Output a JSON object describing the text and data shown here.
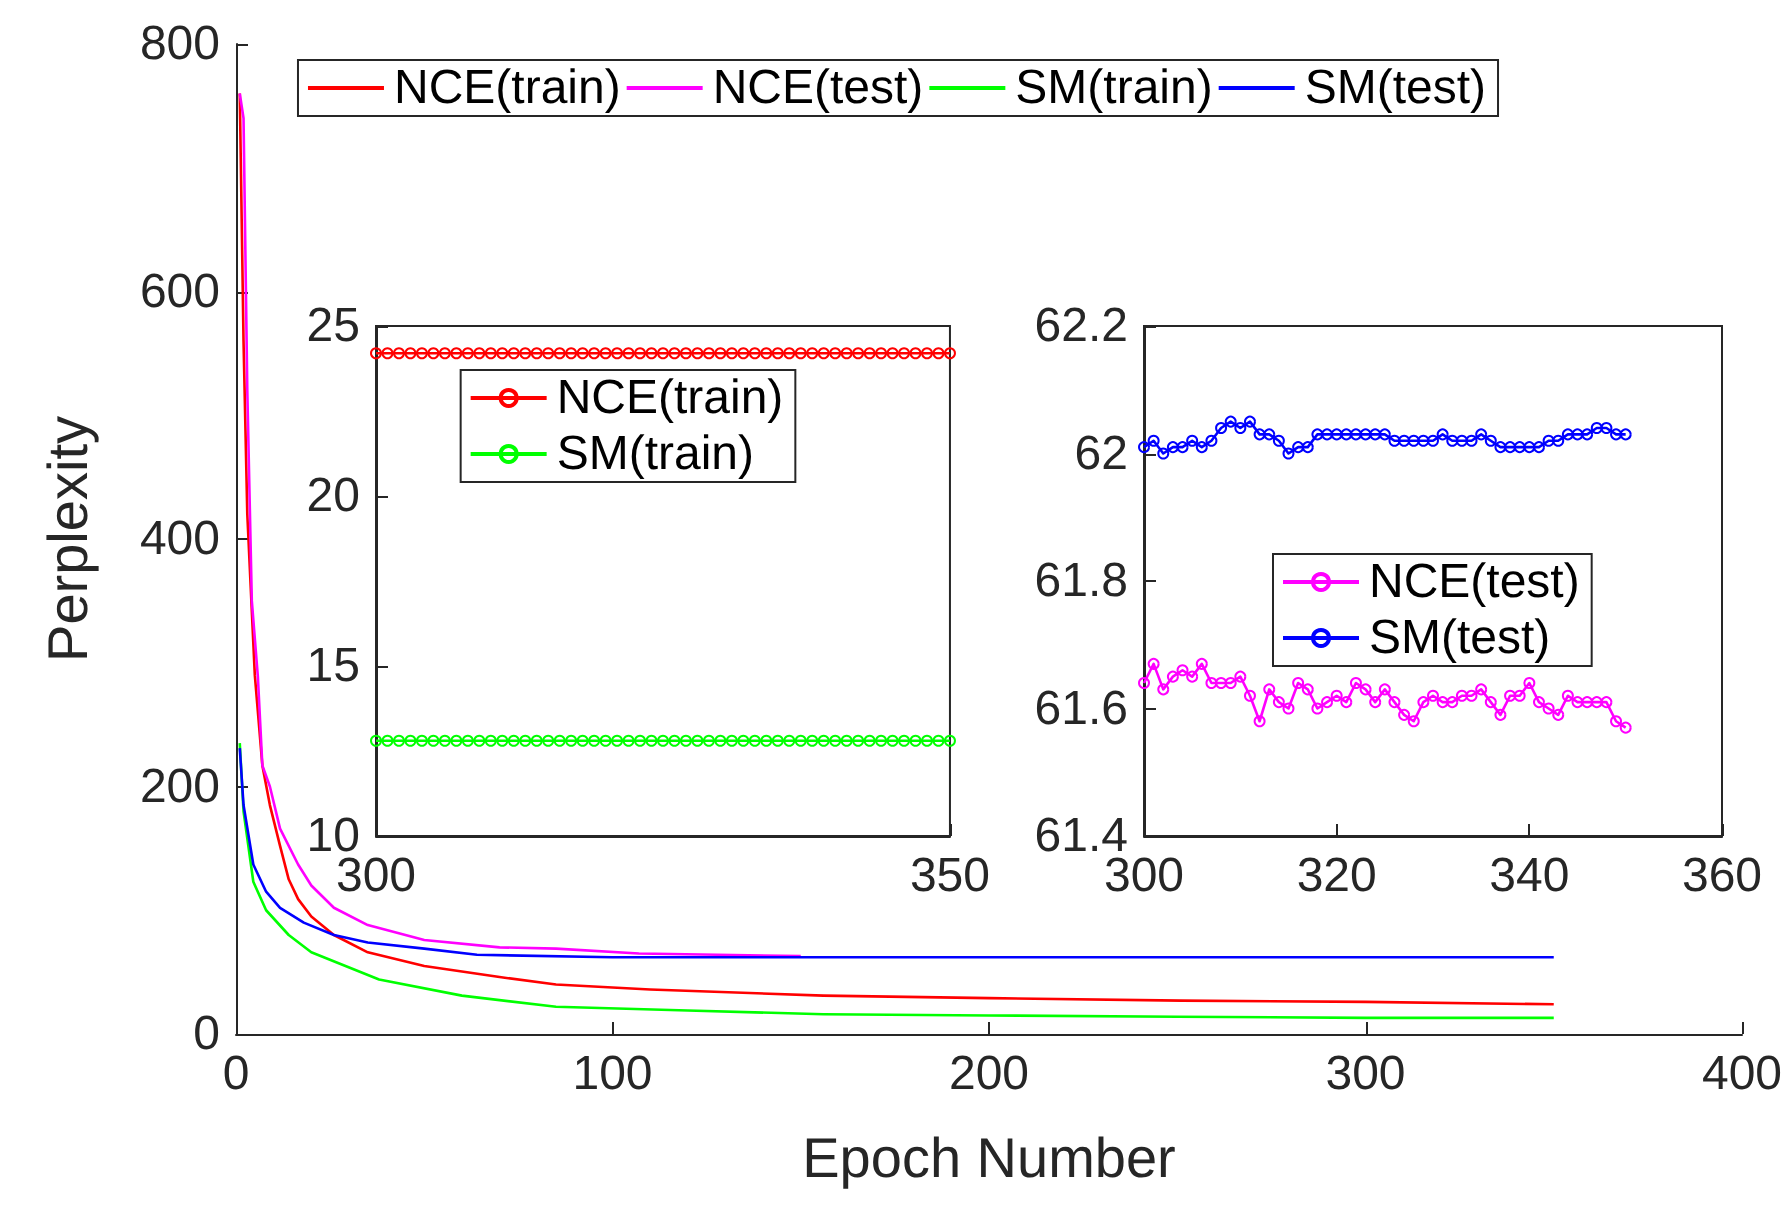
{
  "chart_data": [
    {
      "type": "line",
      "xlabel": "Epoch Number",
      "ylabel": "Perplexity",
      "xlim": [
        0,
        400
      ],
      "xticks": [
        0,
        100,
        200,
        300,
        400
      ],
      "ylim": [
        0,
        800
      ],
      "yticks": [
        0,
        200,
        400,
        600,
        800
      ],
      "legend": "top",
      "marker": "none",
      "series": [
        {
          "name": "NCE(train)",
          "color": "#ff0000",
          "x": [
            1,
            2,
            3,
            5,
            7,
            9,
            11.7,
            14,
            16.5,
            20,
            26,
            35,
            50,
            70,
            85,
            110,
            156,
            200,
            251,
            300,
            350
          ],
          "values": [
            760,
            560,
            420,
            290,
            217,
            185,
            152,
            125,
            109,
            95,
            80,
            66,
            55,
            46,
            40,
            36,
            31,
            29,
            27,
            26,
            24
          ]
        },
        {
          "name": "NCE(test)",
          "color": "#ff00ff",
          "x": [
            1,
            2,
            3,
            4.2,
            5.8,
            7,
            9,
            11.7,
            16.5,
            20,
            26,
            35,
            50,
            70,
            85,
            107,
            150
          ],
          "values": [
            760,
            740,
            520,
            350,
            289,
            217,
            200,
            166,
            137,
            120,
            102,
            88,
            76,
            70,
            69,
            65,
            63
          ]
        },
        {
          "name": "SM(train)",
          "color": "#00ff00",
          "x": [
            1,
            2,
            4.6,
            8,
            14,
            20,
            38,
            60,
            85,
            120,
            156,
            200,
            250,
            300,
            350
          ],
          "values": [
            235,
            180,
            123,
            100,
            80,
            66,
            44,
            31,
            22,
            19,
            16,
            15,
            14,
            13,
            13
          ]
        },
        {
          "name": "SM(test)",
          "color": "#0000ff",
          "x": [
            1,
            2,
            4.6,
            8,
            11.7,
            18,
            26,
            35,
            50,
            64,
            100,
            200,
            300,
            350
          ],
          "values": [
            231,
            185,
            137,
            115,
            102,
            90,
            80,
            74,
            69,
            64,
            62,
            62,
            62,
            62
          ]
        }
      ]
    },
    {
      "type": "line",
      "xlim": [
        300,
        350
      ],
      "xticks": [
        300,
        350
      ],
      "ylim": [
        10,
        25
      ],
      "yticks": [
        10,
        15,
        20,
        25
      ],
      "legend": "top",
      "marker": "circle",
      "x": [
        300,
        301,
        302,
        303,
        304,
        305,
        306,
        307,
        308,
        309,
        310,
        311,
        312,
        313,
        314,
        315,
        316,
        317,
        318,
        319,
        320,
        321,
        322,
        323,
        324,
        325,
        326,
        327,
        328,
        329,
        330,
        331,
        332,
        333,
        334,
        335,
        336,
        337,
        338,
        339,
        340,
        341,
        342,
        343,
        344,
        345,
        346,
        347,
        348,
        349,
        350
      ],
      "series": [
        {
          "name": "NCE(train)",
          "color": "#ff0000",
          "values": [
            24.2,
            24.2,
            24.2,
            24.2,
            24.2,
            24.2,
            24.2,
            24.2,
            24.2,
            24.2,
            24.2,
            24.2,
            24.2,
            24.2,
            24.2,
            24.2,
            24.2,
            24.2,
            24.2,
            24.2,
            24.2,
            24.2,
            24.2,
            24.2,
            24.2,
            24.2,
            24.2,
            24.2,
            24.2,
            24.2,
            24.2,
            24.2,
            24.2,
            24.2,
            24.2,
            24.2,
            24.2,
            24.2,
            24.2,
            24.2,
            24.2,
            24.2,
            24.2,
            24.2,
            24.2,
            24.2,
            24.2,
            24.2,
            24.2,
            24.2,
            24.2
          ]
        },
        {
          "name": "SM(train)",
          "color": "#00ff00",
          "values": [
            12.8,
            12.8,
            12.8,
            12.8,
            12.8,
            12.8,
            12.8,
            12.8,
            12.8,
            12.8,
            12.8,
            12.8,
            12.8,
            12.8,
            12.8,
            12.8,
            12.8,
            12.8,
            12.8,
            12.8,
            12.8,
            12.8,
            12.8,
            12.8,
            12.8,
            12.8,
            12.8,
            12.8,
            12.8,
            12.8,
            12.8,
            12.8,
            12.8,
            12.8,
            12.8,
            12.8,
            12.8,
            12.8,
            12.8,
            12.8,
            12.8,
            12.8,
            12.8,
            12.8,
            12.8,
            12.8,
            12.8,
            12.8,
            12.8,
            12.8,
            12.8
          ]
        }
      ]
    },
    {
      "type": "line",
      "xlim": [
        300,
        360
      ],
      "xticks": [
        300,
        320,
        340,
        360
      ],
      "ylim": [
        61.4,
        62.2
      ],
      "yticks": [
        61.4,
        61.6,
        61.8,
        62,
        62.2
      ],
      "legend": "center",
      "marker": "circle",
      "x": [
        300,
        301,
        302,
        303,
        304,
        305,
        306,
        307,
        308,
        309,
        310,
        311,
        312,
        313,
        314,
        315,
        316,
        317,
        318,
        319,
        320,
        321,
        322,
        323,
        324,
        325,
        326,
        327,
        328,
        329,
        330,
        331,
        332,
        333,
        334,
        335,
        336,
        337,
        338,
        339,
        340,
        341,
        342,
        343,
        344,
        345,
        346,
        347,
        348,
        349,
        350
      ],
      "series": [
        {
          "name": "NCE(test)",
          "color": "#ff00ff",
          "values": [
            61.64,
            61.67,
            61.63,
            61.65,
            61.66,
            61.65,
            61.67,
            61.64,
            61.64,
            61.64,
            61.65,
            61.62,
            61.58,
            61.63,
            61.61,
            61.6,
            61.64,
            61.63,
            61.6,
            61.61,
            61.62,
            61.61,
            61.64,
            61.63,
            61.61,
            61.63,
            61.61,
            61.59,
            61.58,
            61.61,
            61.62,
            61.61,
            61.61,
            61.62,
            61.62,
            61.63,
            61.61,
            61.59,
            61.62,
            61.62,
            61.64,
            61.61,
            61.6,
            61.59,
            61.62,
            61.61,
            61.61,
            61.61,
            61.61,
            61.58,
            61.57
          ]
        },
        {
          "name": "SM(test)",
          "color": "#0000ff",
          "values": [
            62.01,
            62.02,
            62,
            62.01,
            62.01,
            62.02,
            62.01,
            62.02,
            62.04,
            62.05,
            62.04,
            62.05,
            62.03,
            62.03,
            62.02,
            62,
            62.01,
            62.01,
            62.03,
            62.03,
            62.03,
            62.03,
            62.03,
            62.03,
            62.03,
            62.03,
            62.02,
            62.02,
            62.02,
            62.02,
            62.02,
            62.03,
            62.02,
            62.02,
            62.02,
            62.03,
            62.02,
            62.01,
            62.01,
            62.01,
            62.01,
            62.01,
            62.02,
            62.02,
            62.03,
            62.03,
            62.03,
            62.04,
            62.04,
            62.03,
            62.03
          ]
        }
      ]
    }
  ]
}
